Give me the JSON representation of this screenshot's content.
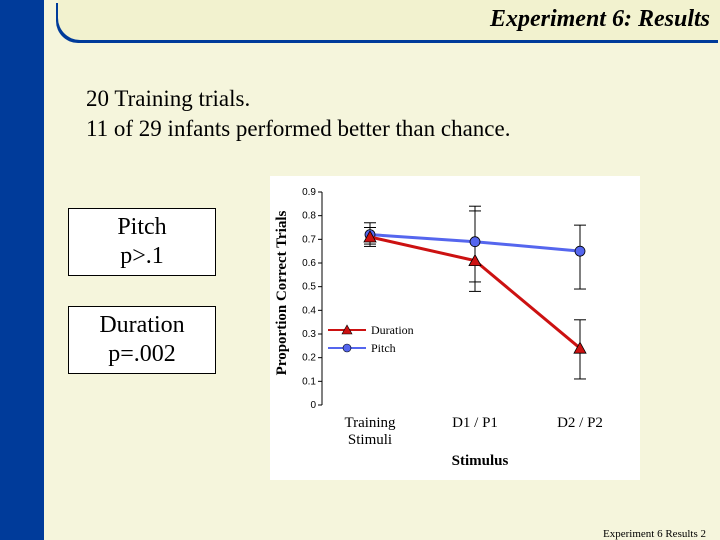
{
  "slide": {
    "title": "Experiment 6: Results",
    "intro_line1": "20 Training trials.",
    "intro_line2": "11 of 29 infants performed better than chance.",
    "pitch_box": {
      "label": "Pitch",
      "stat": "p>.1"
    },
    "duration_box": {
      "label": "Duration",
      "stat": "p=.002"
    },
    "footer": "Experiment 6 Results 2"
  },
  "colors": {
    "duration": "#cc1111",
    "pitch": "#5566ee",
    "left_bar": "#003b9a",
    "background": "#f5f5dc"
  },
  "chart_data": {
    "type": "line",
    "title": "",
    "xlabel": "Stimulus",
    "ylabel": "Proportion Correct Trials",
    "categories": [
      "Training Stimuli",
      "D1 / P1",
      "D2 / P2"
    ],
    "ylim": [
      0,
      0.9
    ],
    "yticks": [
      "0",
      "0.1",
      "0.2",
      "0.3",
      "0.4",
      "0.5",
      "0.6",
      "0.7",
      "0.8",
      "0.9"
    ],
    "legend_position": "center-left",
    "series": [
      {
        "name": "Duration",
        "values": [
          0.71,
          0.61,
          0.24
        ],
        "error_low": [
          0.67,
          0.52,
          0.11
        ],
        "error_high": [
          0.75,
          0.84,
          0.36
        ],
        "marker": "triangle"
      },
      {
        "name": "Pitch",
        "values": [
          0.72,
          0.69,
          0.65
        ],
        "error_low": [
          0.68,
          0.48,
          0.49
        ],
        "error_high": [
          0.77,
          0.82,
          0.76
        ],
        "marker": "circle"
      }
    ]
  }
}
